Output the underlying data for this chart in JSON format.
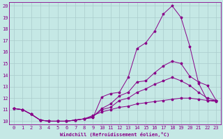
{
  "xlabel": "Windchill (Refroidissement éolien,°C)",
  "background_color": "#c5e8e5",
  "grid_color": "#aacccc",
  "line_color": "#880088",
  "xlim": [
    -0.5,
    23.5
  ],
  "ylim": [
    9.7,
    20.3
  ],
  "xticks": [
    0,
    1,
    2,
    3,
    4,
    5,
    6,
    7,
    8,
    9,
    10,
    11,
    12,
    13,
    14,
    15,
    16,
    17,
    18,
    19,
    20,
    21,
    22,
    23
  ],
  "yticks": [
    10,
    11,
    12,
    13,
    14,
    15,
    16,
    17,
    18,
    19,
    20
  ],
  "line1_x": [
    0,
    1,
    2,
    3,
    4,
    5,
    6,
    7,
    8,
    9,
    10,
    11,
    12,
    13,
    14,
    15,
    16,
    17,
    18,
    19,
    20,
    21,
    22,
    23
  ],
  "line1_y": [
    11.1,
    11.0,
    10.6,
    10.1,
    10.0,
    10.0,
    10.0,
    10.1,
    10.2,
    10.3,
    12.1,
    12.4,
    12.5,
    13.8,
    16.3,
    16.8,
    17.8,
    19.3,
    20.0,
    19.0,
    16.5,
    13.3,
    11.8,
    11.8
  ],
  "line2_x": [
    0,
    1,
    2,
    3,
    4,
    5,
    6,
    7,
    8,
    9,
    10,
    11,
    12,
    13,
    14,
    15,
    16,
    17,
    18,
    19,
    20,
    21,
    22,
    23
  ],
  "line2_y": [
    11.1,
    11.0,
    10.6,
    10.1,
    10.0,
    10.0,
    10.0,
    10.1,
    10.2,
    10.4,
    11.1,
    11.5,
    12.2,
    12.5,
    13.4,
    13.5,
    14.2,
    14.8,
    15.2,
    15.0,
    13.9,
    13.4,
    13.1,
    11.8
  ],
  "line3_x": [
    0,
    1,
    2,
    3,
    4,
    5,
    6,
    7,
    8,
    9,
    10,
    11,
    12,
    13,
    14,
    15,
    16,
    17,
    18,
    19,
    20,
    21,
    22,
    23
  ],
  "line3_y": [
    11.1,
    11.0,
    10.6,
    10.1,
    10.0,
    10.0,
    10.0,
    10.1,
    10.2,
    10.4,
    11.0,
    11.2,
    11.8,
    12.0,
    12.5,
    12.8,
    13.2,
    13.5,
    13.8,
    13.5,
    13.1,
    12.5,
    12.0,
    11.8
  ],
  "line4_x": [
    0,
    1,
    2,
    3,
    4,
    5,
    6,
    7,
    8,
    9,
    10,
    11,
    12,
    13,
    14,
    15,
    16,
    17,
    18,
    19,
    20,
    21,
    22,
    23
  ],
  "line4_y": [
    11.1,
    11.0,
    10.6,
    10.1,
    10.0,
    10.0,
    10.0,
    10.1,
    10.2,
    10.5,
    10.8,
    11.0,
    11.2,
    11.3,
    11.5,
    11.6,
    11.7,
    11.8,
    11.9,
    12.0,
    12.0,
    11.9,
    11.8,
    11.7
  ]
}
